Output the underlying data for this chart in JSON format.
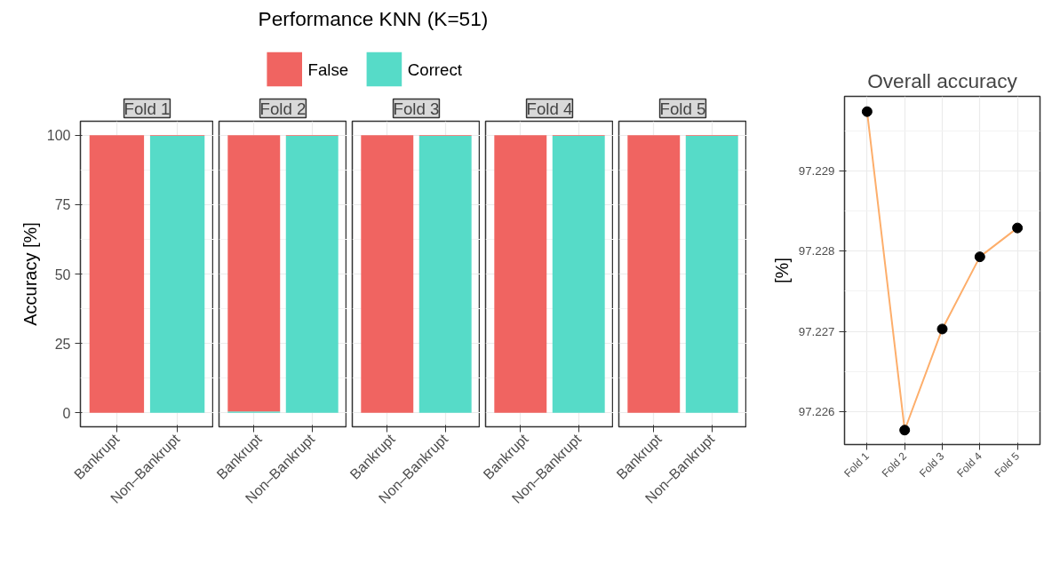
{
  "chart_data": [
    {
      "type": "bar",
      "subtitle": "Fold 1",
      "ylabel": "Accuracy [%]",
      "categories": [
        "Bankrupt",
        "Non–Bankrupt"
      ],
      "stacked": true,
      "grid": true,
      "ylim": [
        -5,
        105
      ],
      "yticks": [
        0,
        25,
        50,
        75,
        100
      ],
      "series": [
        {
          "color": "#56dbc8",
          "values": [
            0,
            99.7
          ]
        },
        {
          "color": "#f06461",
          "values": [
            100,
            0.3
          ]
        }
      ]
    },
    {
      "type": "bar",
      "subtitle": "Fold 2",
      "categories": [
        "Bankrupt",
        "Non–Bankrupt"
      ],
      "stacked": true,
      "grid": true,
      "ylim": [
        -5,
        105
      ],
      "yticks": [
        0,
        25,
        50,
        75,
        100
      ],
      "tick_labels": "x",
      "series": [
        {
          "color": "#56dbc8",
          "values": [
            0.5,
            99.7
          ]
        },
        {
          "color": "#f06461",
          "values": [
            99.5,
            0.3
          ]
        }
      ]
    },
    {
      "type": "bar",
      "title": "Performance KNN (K=51)",
      "subtitle": "Fold 3",
      "categories": [
        "Bankrupt",
        "Non–Bankrupt"
      ],
      "stacked": true,
      "legend": "top",
      "grid": true,
      "ylim": [
        -5,
        105
      ],
      "yticks": [
        0,
        25,
        50,
        75,
        100
      ],
      "tick_labels": "x",
      "series": [
        {
          "name": "Correct",
          "color": "#56dbc8",
          "values": [
            0,
            99.7
          ]
        },
        {
          "name": "False",
          "color": "#f06461",
          "values": [
            100,
            0.3
          ]
        }
      ]
    },
    {
      "type": "bar",
      "subtitle": "Fold 4",
      "categories": [
        "Bankrupt",
        "Non–Bankrupt"
      ],
      "stacked": true,
      "grid": true,
      "ylim": [
        -5,
        105
      ],
      "yticks": [
        0,
        25,
        50,
        75,
        100
      ],
      "tick_labels": "x",
      "series": [
        {
          "color": "#56dbc8",
          "values": [
            0,
            99.7
          ]
        },
        {
          "color": "#f06461",
          "values": [
            100,
            0.3
          ]
        }
      ]
    },
    {
      "type": "bar",
      "subtitle": "Fold 5",
      "categories": [
        "Bankrupt",
        "Non–Bankrupt"
      ],
      "stacked": true,
      "grid": true,
      "ylim": [
        -5,
        105
      ],
      "yticks": [
        0,
        25,
        50,
        75,
        100
      ],
      "tick_labels": "x",
      "series": [
        {
          "color": "#56dbc8",
          "values": [
            0,
            99.7
          ]
        },
        {
          "color": "#f06461",
          "values": [
            100,
            0.3
          ]
        }
      ]
    },
    {
      "type": "line",
      "title": "Overall accuracy",
      "ylabel": "[%]",
      "categories": [
        "Fold 1",
        "Fold 2",
        "Fold 3",
        "Fold 4",
        "Fold 5"
      ],
      "marker": "circle",
      "grid": true,
      "ylim": [
        97.22559,
        97.22993
      ],
      "yticks": [
        97.226,
        97.227,
        97.228,
        97.229
      ],
      "series": [
        {
          "color": "#fdae6b",
          "values": [
            97.22974,
            97.22577,
            97.22703,
            97.22793,
            97.22829
          ]
        }
      ]
    }
  ]
}
